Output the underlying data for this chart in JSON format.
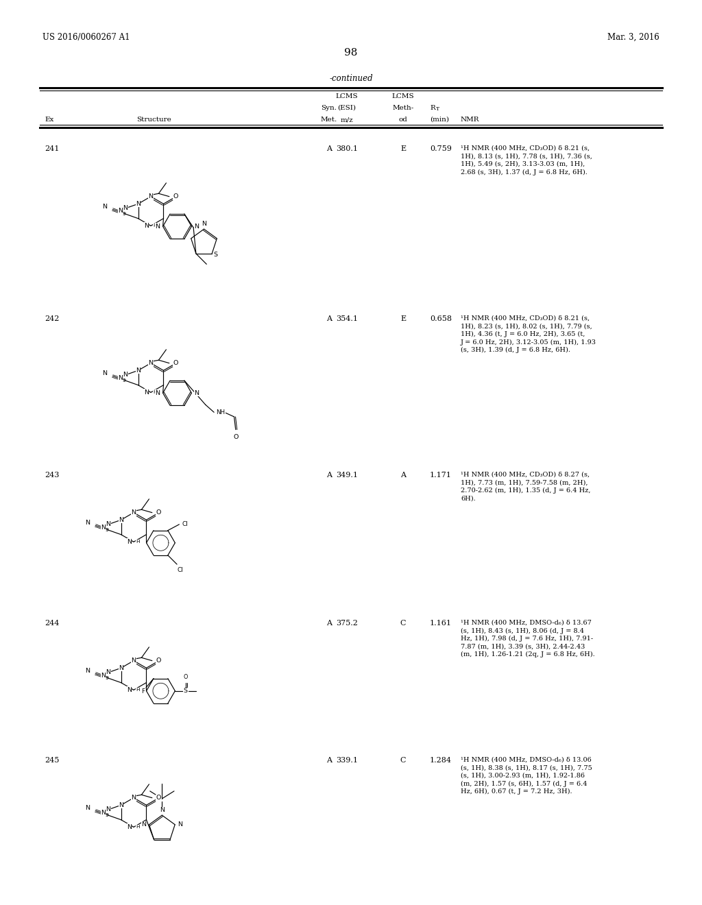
{
  "bg_color": "#ffffff",
  "header_left": "US 2016/0060267 A1",
  "header_right": "Mar. 3, 2016",
  "page_number": "98",
  "continued_text": "-continued",
  "rows": [
    {
      "ex": "241",
      "syn_met": "A",
      "lcms_esi": "380.1",
      "lcms_method": "E",
      "rt": "0.759",
      "nmr_lines": [
        "¹H NMR (400 MHz, CD₃OD) δ 8.21 (s,",
        "1H), 8.13 (s, 1H), 7.78 (s, 1H), 7.36 (s,",
        "1H), 5.49 (s, 2H), 3.13-3.03 (m, 1H),",
        "2.68 (s, 3H), 1.37 (d, J = 6.8 Hz, 6H)."
      ]
    },
    {
      "ex": "242",
      "syn_met": "A",
      "lcms_esi": "354.1",
      "lcms_method": "E",
      "rt": "0.658",
      "nmr_lines": [
        "¹H NMR (400 MHz, CD₃OD) δ 8.21 (s,",
        "1H), 8.23 (s, 1H), 8.02 (s, 1H), 7.79 (s,",
        "1H), 4.36 (t, J = 6.0 Hz, 2H), 3.65 (t,",
        "J = 6.0 Hz, 2H), 3.12-3.05 (m, 1H), 1.93",
        "(s, 3H), 1.39 (d, J = 6.8 Hz, 6H)."
      ]
    },
    {
      "ex": "243",
      "syn_met": "A",
      "lcms_esi": "349.1",
      "lcms_method": "A",
      "rt": "1.171",
      "nmr_lines": [
        "¹H NMR (400 MHz, CD₃OD) δ 8.27 (s,",
        "1H), 7.73 (m, 1H), 7.59-7.58 (m, 2H),",
        "2.70-2.62 (m, 1H), 1.35 (d, J = 6.4 Hz,",
        "6H)."
      ]
    },
    {
      "ex": "244",
      "syn_met": "A",
      "lcms_esi": "375.2",
      "lcms_method": "C",
      "rt": "1.161",
      "nmr_lines": [
        "¹H NMR (400 MHz, DMSO-d₆) δ 13.67",
        "(s, 1H), 8.43 (s, 1H), 8.06 (d, J = 8.4",
        "Hz, 1H), 7.98 (d, J = 7.6 Hz, 1H), 7.91-",
        "7.87 (m, 1H), 3.39 (s, 3H), 2.44-2.43",
        "(m, 1H), 1.26-1.21 (2q, J = 6.8 Hz, 6H)."
      ]
    },
    {
      "ex": "245",
      "syn_met": "A",
      "lcms_esi": "339.1",
      "lcms_method": "C",
      "rt": "1.284",
      "nmr_lines": [
        "¹H NMR (400 MHz, DMSO-d₆) δ 13.06",
        "(s, 1H), 8.38 (s, 1H), 8.17 (s, 1H), 7.75",
        "(s, 1H), 3.00-2.93 (m, 1H), 1.92-1.86",
        "(m, 2H), 1.57 (s, 6H), 1.57 (d, J = 6.4",
        "Hz, 6H), 0.67 (t, J = 7.2 Hz, 3H)."
      ]
    }
  ]
}
